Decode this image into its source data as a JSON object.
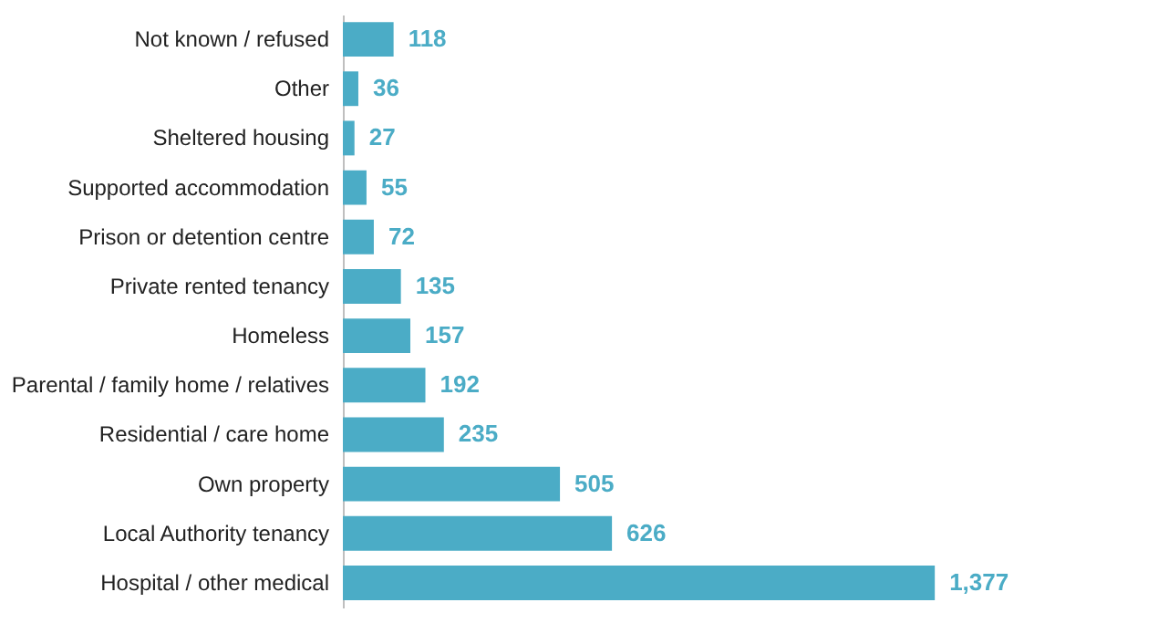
{
  "chart_data": {
    "type": "bar",
    "orientation": "horizontal",
    "categories": [
      "Not known / refused",
      "Other",
      "Sheltered housing",
      "Supported accommodation",
      "Prison or detention centre",
      "Private rented tenancy",
      "Homeless",
      "Parental / family home / relatives",
      "Residential / care home",
      "Own property",
      "Local Authority tenancy",
      "Hospital / other medical"
    ],
    "values": [
      118,
      36,
      27,
      55,
      72,
      135,
      157,
      192,
      235,
      505,
      626,
      1377
    ],
    "value_labels": [
      "118",
      "36",
      "27",
      "55",
      "72",
      "135",
      "157",
      "192",
      "235",
      "505",
      "626",
      "1,377"
    ],
    "color": "#4bacc6",
    "tick_labels": "y"
  }
}
